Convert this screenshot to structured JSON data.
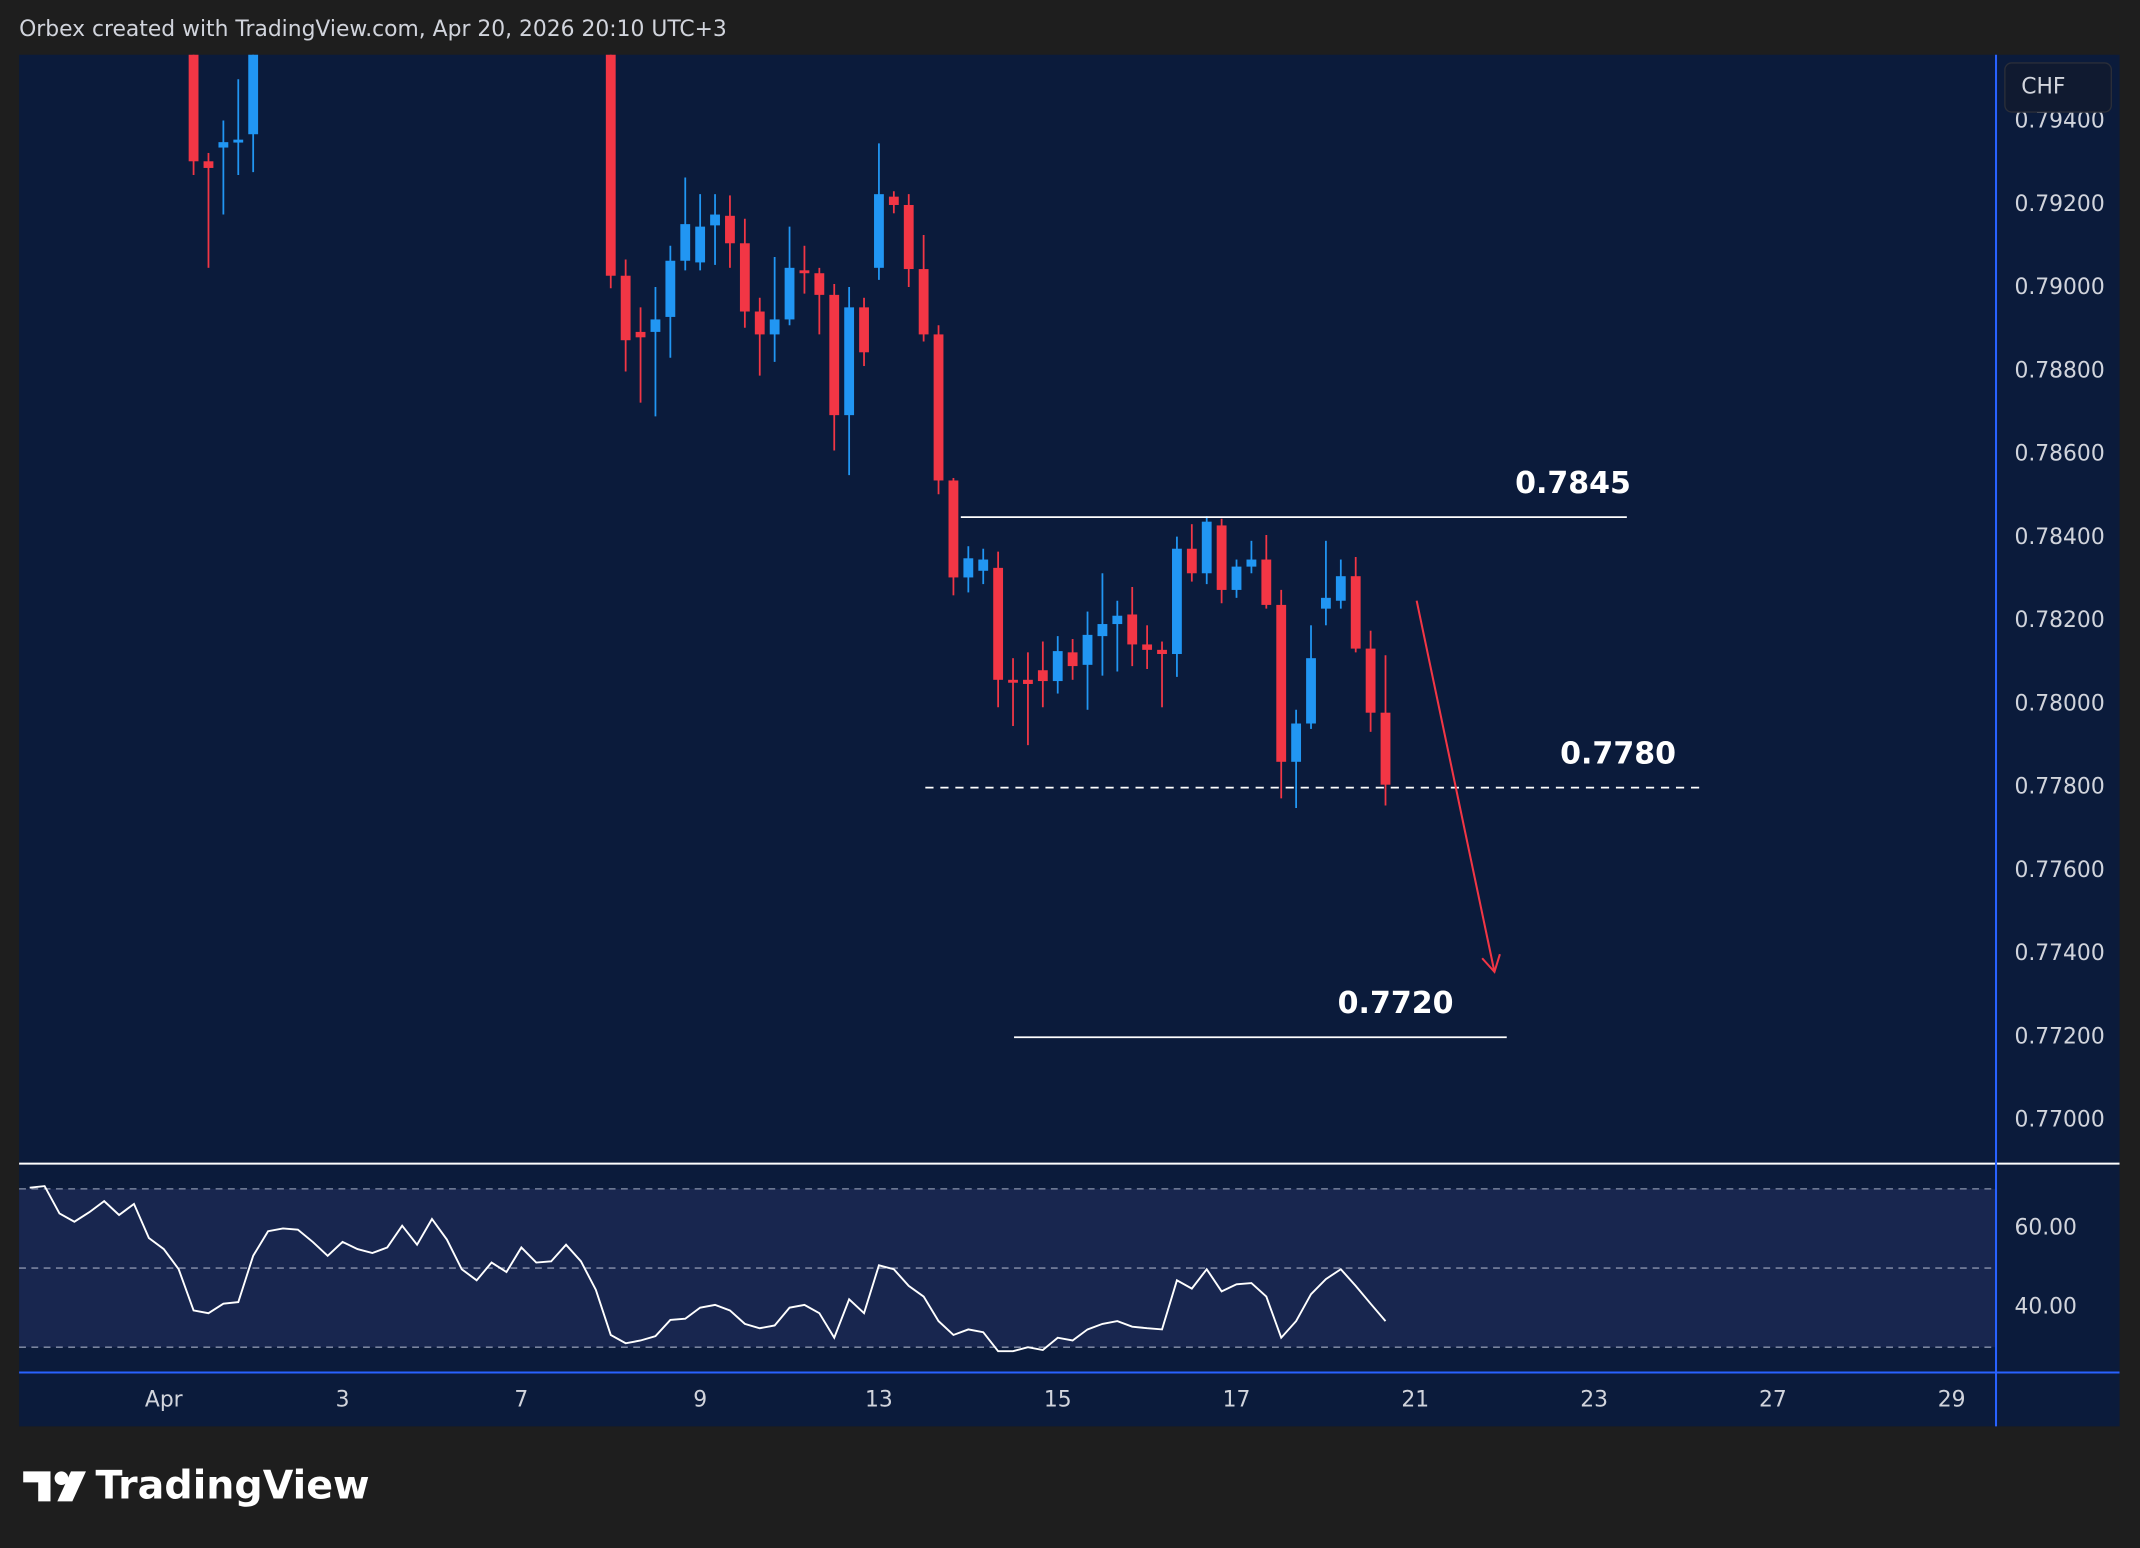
{
  "header": {
    "text": "Orbex created with TradingView.com, Apr 20, 2026 20:10 UTC+3"
  },
  "footer": {
    "brand": "TradingView"
  },
  "chart_data": [
    {
      "type": "candlestick",
      "currency": "CHF",
      "up_color": "#2196f3",
      "down_color": "#f23645",
      "xlim": [
        -9.71,
        122.93
      ],
      "xticks": [
        {
          "value": 0,
          "label": "Apr"
        },
        {
          "value": 12,
          "label": "3"
        },
        {
          "value": 24,
          "label": "7"
        },
        {
          "value": 36,
          "label": "9"
        },
        {
          "value": 48,
          "label": "13"
        },
        {
          "value": 60,
          "label": "15"
        },
        {
          "value": 72,
          "label": "17"
        },
        {
          "value": 84,
          "label": "21"
        },
        {
          "value": 96,
          "label": "23"
        },
        {
          "value": 108,
          "label": "27"
        },
        {
          "value": 120,
          "label": "29"
        }
      ],
      "ylim": [
        0.76898,
        0.79561
      ],
      "yticks": [
        {
          "value": 0.794,
          "label": "0.79400"
        },
        {
          "value": 0.792,
          "label": "0.79200"
        },
        {
          "value": 0.79,
          "label": "0.79000"
        },
        {
          "value": 0.788,
          "label": "0.78800"
        },
        {
          "value": 0.786,
          "label": "0.78600"
        },
        {
          "value": 0.784,
          "label": "0.78400"
        },
        {
          "value": 0.782,
          "label": "0.78200"
        },
        {
          "value": 0.78,
          "label": "0.78000"
        },
        {
          "value": 0.778,
          "label": "0.77800"
        },
        {
          "value": 0.776,
          "label": "0.77600"
        },
        {
          "value": 0.774,
          "label": "0.77400"
        },
        {
          "value": 0.772,
          "label": "0.77200"
        },
        {
          "value": 0.77,
          "label": "0.77000"
        }
      ],
      "x": [
        2,
        3,
        4,
        5,
        6,
        30,
        31,
        32,
        33,
        34,
        35,
        36,
        37,
        38,
        39,
        40,
        41,
        42,
        43,
        44,
        45,
        46,
        47,
        48,
        49,
        50,
        51,
        52,
        53,
        54,
        55,
        56,
        57,
        58,
        59,
        60,
        61,
        62,
        63,
        64,
        65,
        66,
        67,
        68,
        69,
        70,
        71,
        72,
        73,
        74,
        75,
        76,
        77,
        78,
        79,
        80,
        81,
        82
      ],
      "open": [
        0.7962,
        0.79305,
        0.79338,
        0.7935,
        0.7937,
        0.796,
        0.7903,
        0.78895,
        0.78895,
        0.78931,
        0.79066,
        0.79062,
        0.79151,
        0.79174,
        0.79108,
        0.78944,
        0.78889,
        0.78925,
        0.79043,
        0.79036,
        0.78984,
        0.78695,
        0.78954,
        0.79049,
        0.7922,
        0.792,
        0.79046,
        0.78889,
        0.78538,
        0.78305,
        0.78321,
        0.78328,
        0.78059,
        0.78059,
        0.78082,
        0.78056,
        0.78125,
        0.78095,
        0.78164,
        0.78193,
        0.78216,
        0.78144,
        0.78131,
        0.78121,
        0.78374,
        0.78315,
        0.7843,
        0.78275,
        0.78331,
        0.78348,
        0.78239,
        0.77862,
        0.77954,
        0.7823,
        0.78249,
        0.78308,
        0.78134,
        0.7798
      ],
      "high": [
        0.7965,
        0.79325,
        0.79403,
        0.79502,
        0.7966,
        0.7962,
        0.79069,
        0.78954,
        0.79003,
        0.79102,
        0.79266,
        0.79226,
        0.79226,
        0.79223,
        0.79167,
        0.78977,
        0.79075,
        0.79148,
        0.79102,
        0.79049,
        0.7901,
        0.79003,
        0.78977,
        0.79348,
        0.79233,
        0.79226,
        0.79128,
        0.78911,
        0.78544,
        0.7838,
        0.78374,
        0.78367,
        0.78111,
        0.78125,
        0.78151,
        0.78164,
        0.78157,
        0.78223,
        0.78315,
        0.78249,
        0.78282,
        0.7819,
        0.78151,
        0.78403,
        0.78433,
        0.78452,
        0.78446,
        0.78348,
        0.78393,
        0.78407,
        0.78275,
        0.77987,
        0.7819,
        0.78393,
        0.78348,
        0.78354,
        0.78177,
        0.78118
      ],
      "low": [
        0.79272,
        0.79049,
        0.79177,
        0.79272,
        0.79279,
        0.79,
        0.788,
        0.78725,
        0.78692,
        0.78833,
        0.79043,
        0.79043,
        0.79056,
        0.79049,
        0.78905,
        0.7879,
        0.78823,
        0.78911,
        0.78987,
        0.78889,
        0.7861,
        0.78551,
        0.78813,
        0.7902,
        0.7918,
        0.79003,
        0.78872,
        0.78505,
        0.78262,
        0.78269,
        0.78289,
        0.77993,
        0.77948,
        0.77902,
        0.77993,
        0.78026,
        0.78059,
        0.77987,
        0.78069,
        0.78079,
        0.78092,
        0.78085,
        0.77993,
        0.78066,
        0.78295,
        0.78289,
        0.78243,
        0.78256,
        0.78315,
        0.7823,
        0.77774,
        0.77751,
        0.77941,
        0.7819,
        0.7823,
        0.78125,
        0.77934,
        0.77757
      ],
      "close": [
        0.79305,
        0.79289,
        0.79351,
        0.79357,
        0.7962,
        0.7903,
        0.78875,
        0.78882,
        0.78925,
        0.79066,
        0.79154,
        0.79148,
        0.79177,
        0.79108,
        0.78944,
        0.78889,
        0.78925,
        0.79049,
        0.79036,
        0.78984,
        0.78695,
        0.78954,
        0.78846,
        0.79226,
        0.792,
        0.79046,
        0.78889,
        0.78538,
        0.78305,
        0.78351,
        0.78348,
        0.78059,
        0.78052,
        0.78049,
        0.78056,
        0.78128,
        0.78092,
        0.78167,
        0.78193,
        0.78213,
        0.78144,
        0.78131,
        0.78121,
        0.78374,
        0.78315,
        0.78439,
        0.78275,
        0.78331,
        0.78348,
        0.78239,
        0.77862,
        0.77954,
        0.78111,
        0.78256,
        0.78308,
        0.78134,
        0.7798,
        0.77807
      ],
      "annotations": [
        {
          "label": "0.7845",
          "value": 0.7845,
          "style": "solid"
        },
        {
          "label": "0.7780",
          "value": 0.778,
          "style": "dashed"
        },
        {
          "label": "0.7720",
          "value": 0.772,
          "style": "solid"
        }
      ]
    },
    {
      "type": "line",
      "color": "#ffffff",
      "ylim": [
        23.8,
        76.2
      ],
      "yticks": [
        {
          "value": 60,
          "label": "60.00"
        },
        {
          "value": 40,
          "label": "40.00"
        }
      ],
      "levels": [
        70,
        50,
        30
      ],
      "x": [
        -9,
        -8,
        -7,
        -6,
        -5,
        -4,
        -3,
        -2,
        -1,
        0,
        1,
        2,
        3,
        4,
        5,
        6,
        7,
        8,
        9,
        10,
        11,
        12,
        13,
        14,
        15,
        16,
        17,
        18,
        19,
        20,
        21,
        22,
        23,
        24,
        25,
        26,
        27,
        28,
        29,
        30,
        31,
        32,
        33,
        34,
        35,
        36,
        37,
        38,
        39,
        40,
        41,
        42,
        43,
        44,
        45,
        46,
        47,
        48,
        49,
        50,
        51,
        52,
        53,
        54,
        55,
        56,
        57,
        58,
        59,
        60,
        61,
        62,
        63,
        64,
        65,
        66,
        67,
        68,
        69,
        70,
        71,
        72,
        73,
        74,
        75,
        76,
        77,
        78,
        79,
        80,
        81,
        82
      ],
      "values": [
        70.3,
        70.7,
        63.8,
        61.7,
        64.1,
        66.9,
        63.4,
        66.2,
        57.6,
        54.8,
        49.7,
        39.3,
        38.6,
        41.0,
        41.4,
        53.1,
        59.3,
        60.0,
        59.7,
        56.6,
        53.1,
        56.6,
        54.8,
        53.8,
        55.2,
        60.7,
        55.9,
        62.4,
        57.2,
        49.7,
        46.9,
        51.4,
        49.0,
        55.2,
        51.4,
        51.7,
        55.9,
        51.7,
        44.5,
        33.1,
        31.0,
        31.7,
        32.8,
        36.9,
        37.2,
        40.0,
        40.7,
        39.3,
        35.9,
        34.8,
        35.5,
        40.0,
        40.7,
        38.6,
        32.4,
        42.1,
        38.6,
        50.7,
        49.7,
        45.5,
        42.8,
        36.6,
        33.1,
        34.5,
        33.8,
        29.0,
        29.0,
        30.0,
        29.3,
        32.4,
        31.7,
        34.5,
        35.9,
        36.6,
        35.2,
        34.8,
        34.5,
        46.9,
        44.8,
        49.7,
        44.1,
        45.9,
        46.2,
        42.8,
        32.4,
        36.6,
        43.4,
        47.2,
        49.7,
        45.5,
        41.0,
        36.6
      ]
    }
  ]
}
